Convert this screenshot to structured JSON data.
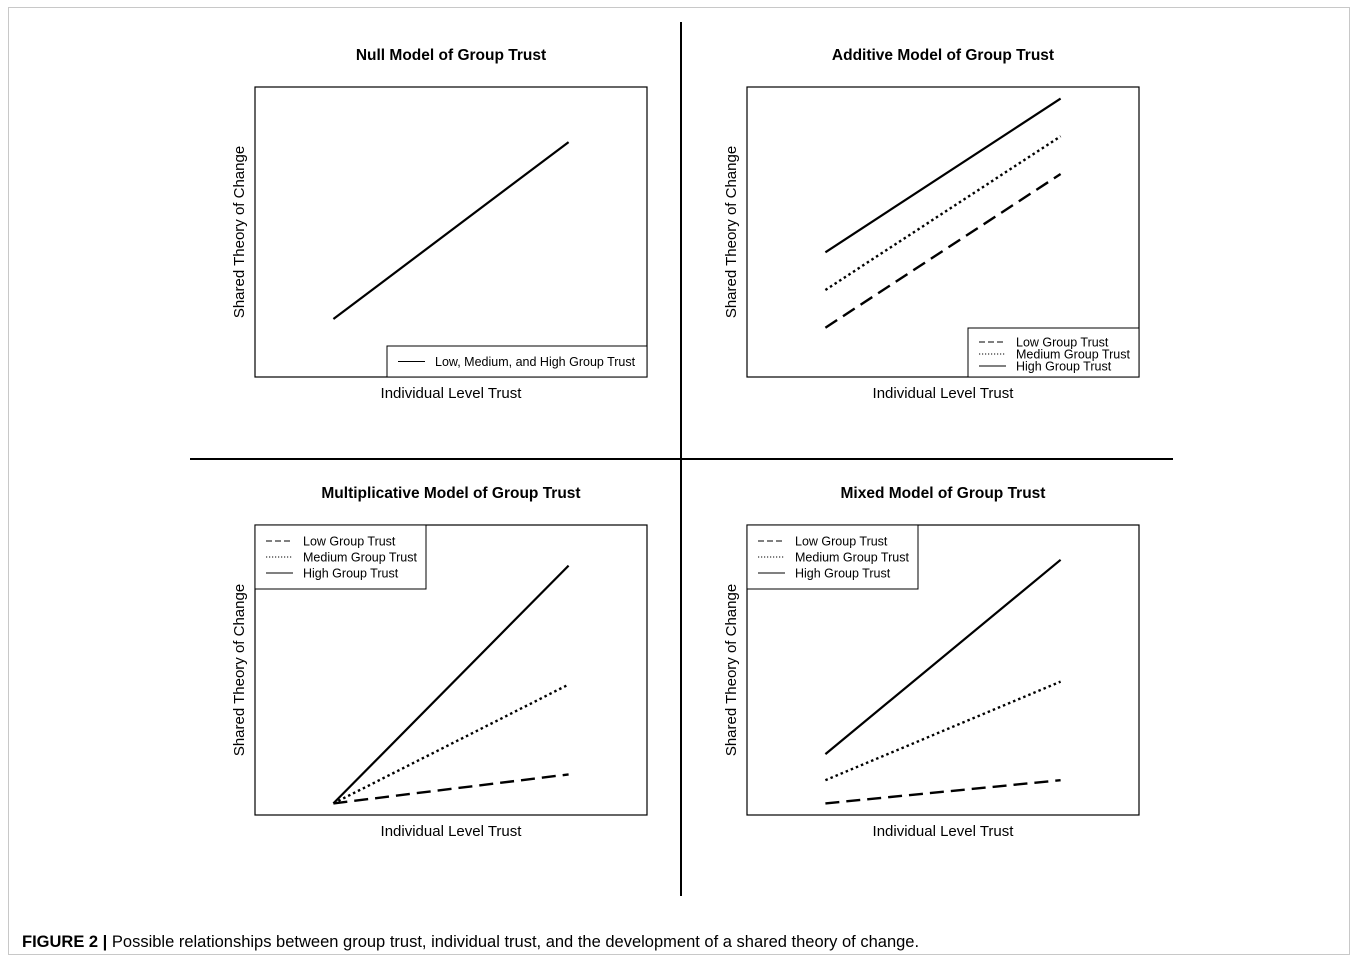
{
  "caption": {
    "label": "FIGURE 2 |",
    "text": "Possible relationships between group trust, individual trust, and the development of a shared theory of change."
  },
  "chart_data": [
    {
      "type": "line",
      "title": "Null Model of Group Trust",
      "xlabel": "Individual Level Trust",
      "ylabel": "Shared Theory of Change",
      "x_ticks_shown": false,
      "y_ticks_shown": false,
      "xlim": [
        0,
        1
      ],
      "ylim": [
        0,
        1
      ],
      "legend": {
        "placement": "bottom-right"
      },
      "series": [
        {
          "name": "Low, Medium, and High Group Trust",
          "style": "solid",
          "x": [
            0.2,
            0.8
          ],
          "y": [
            0.2,
            0.81
          ]
        }
      ]
    },
    {
      "type": "line",
      "title": "Additive Model of Group Trust",
      "xlabel": "Individual Level Trust",
      "ylabel": "Shared Theory of Change",
      "x_ticks_shown": false,
      "y_ticks_shown": false,
      "xlim": [
        0,
        1
      ],
      "ylim": [
        0,
        1
      ],
      "legend": {
        "placement": "bottom-right"
      },
      "series": [
        {
          "name": "Low Group Trust",
          "style": "dashed",
          "x": [
            0.2,
            0.8
          ],
          "y": [
            0.17,
            0.7
          ]
        },
        {
          "name": "Medium Group Trust",
          "style": "dotted",
          "x": [
            0.2,
            0.8
          ],
          "y": [
            0.3,
            0.83
          ]
        },
        {
          "name": "High Group Trust",
          "style": "solid",
          "x": [
            0.2,
            0.8
          ],
          "y": [
            0.43,
            0.96
          ]
        }
      ]
    },
    {
      "type": "line",
      "title": "Multiplicative Model of Group Trust",
      "xlabel": "Individual Level Trust",
      "ylabel": "Shared Theory of Change",
      "x_ticks_shown": false,
      "y_ticks_shown": false,
      "xlim": [
        0,
        1
      ],
      "ylim": [
        0,
        1
      ],
      "legend": {
        "placement": "top-left"
      },
      "series": [
        {
          "name": "Low Group Trust",
          "style": "dashed",
          "x": [
            0.2,
            0.8
          ],
          "y": [
            0.04,
            0.14
          ]
        },
        {
          "name": "Medium Group Trust",
          "style": "dotted",
          "x": [
            0.2,
            0.8
          ],
          "y": [
            0.04,
            0.45
          ]
        },
        {
          "name": "High Group Trust",
          "style": "solid",
          "x": [
            0.2,
            0.8
          ],
          "y": [
            0.04,
            0.86
          ]
        }
      ]
    },
    {
      "type": "line",
      "title": "Mixed Model of Group Trust",
      "xlabel": "Individual Level Trust",
      "ylabel": "Shared Theory of Change",
      "x_ticks_shown": false,
      "y_ticks_shown": false,
      "xlim": [
        0,
        1
      ],
      "ylim": [
        0,
        1
      ],
      "legend": {
        "placement": "top-left"
      },
      "series": [
        {
          "name": "Low Group Trust",
          "style": "dashed",
          "x": [
            0.2,
            0.8
          ],
          "y": [
            0.04,
            0.12
          ]
        },
        {
          "name": "Medium Group Trust",
          "style": "dotted",
          "x": [
            0.2,
            0.8
          ],
          "y": [
            0.12,
            0.46
          ]
        },
        {
          "name": "High Group Trust",
          "style": "solid",
          "x": [
            0.2,
            0.8
          ],
          "y": [
            0.21,
            0.88
          ]
        }
      ]
    }
  ]
}
